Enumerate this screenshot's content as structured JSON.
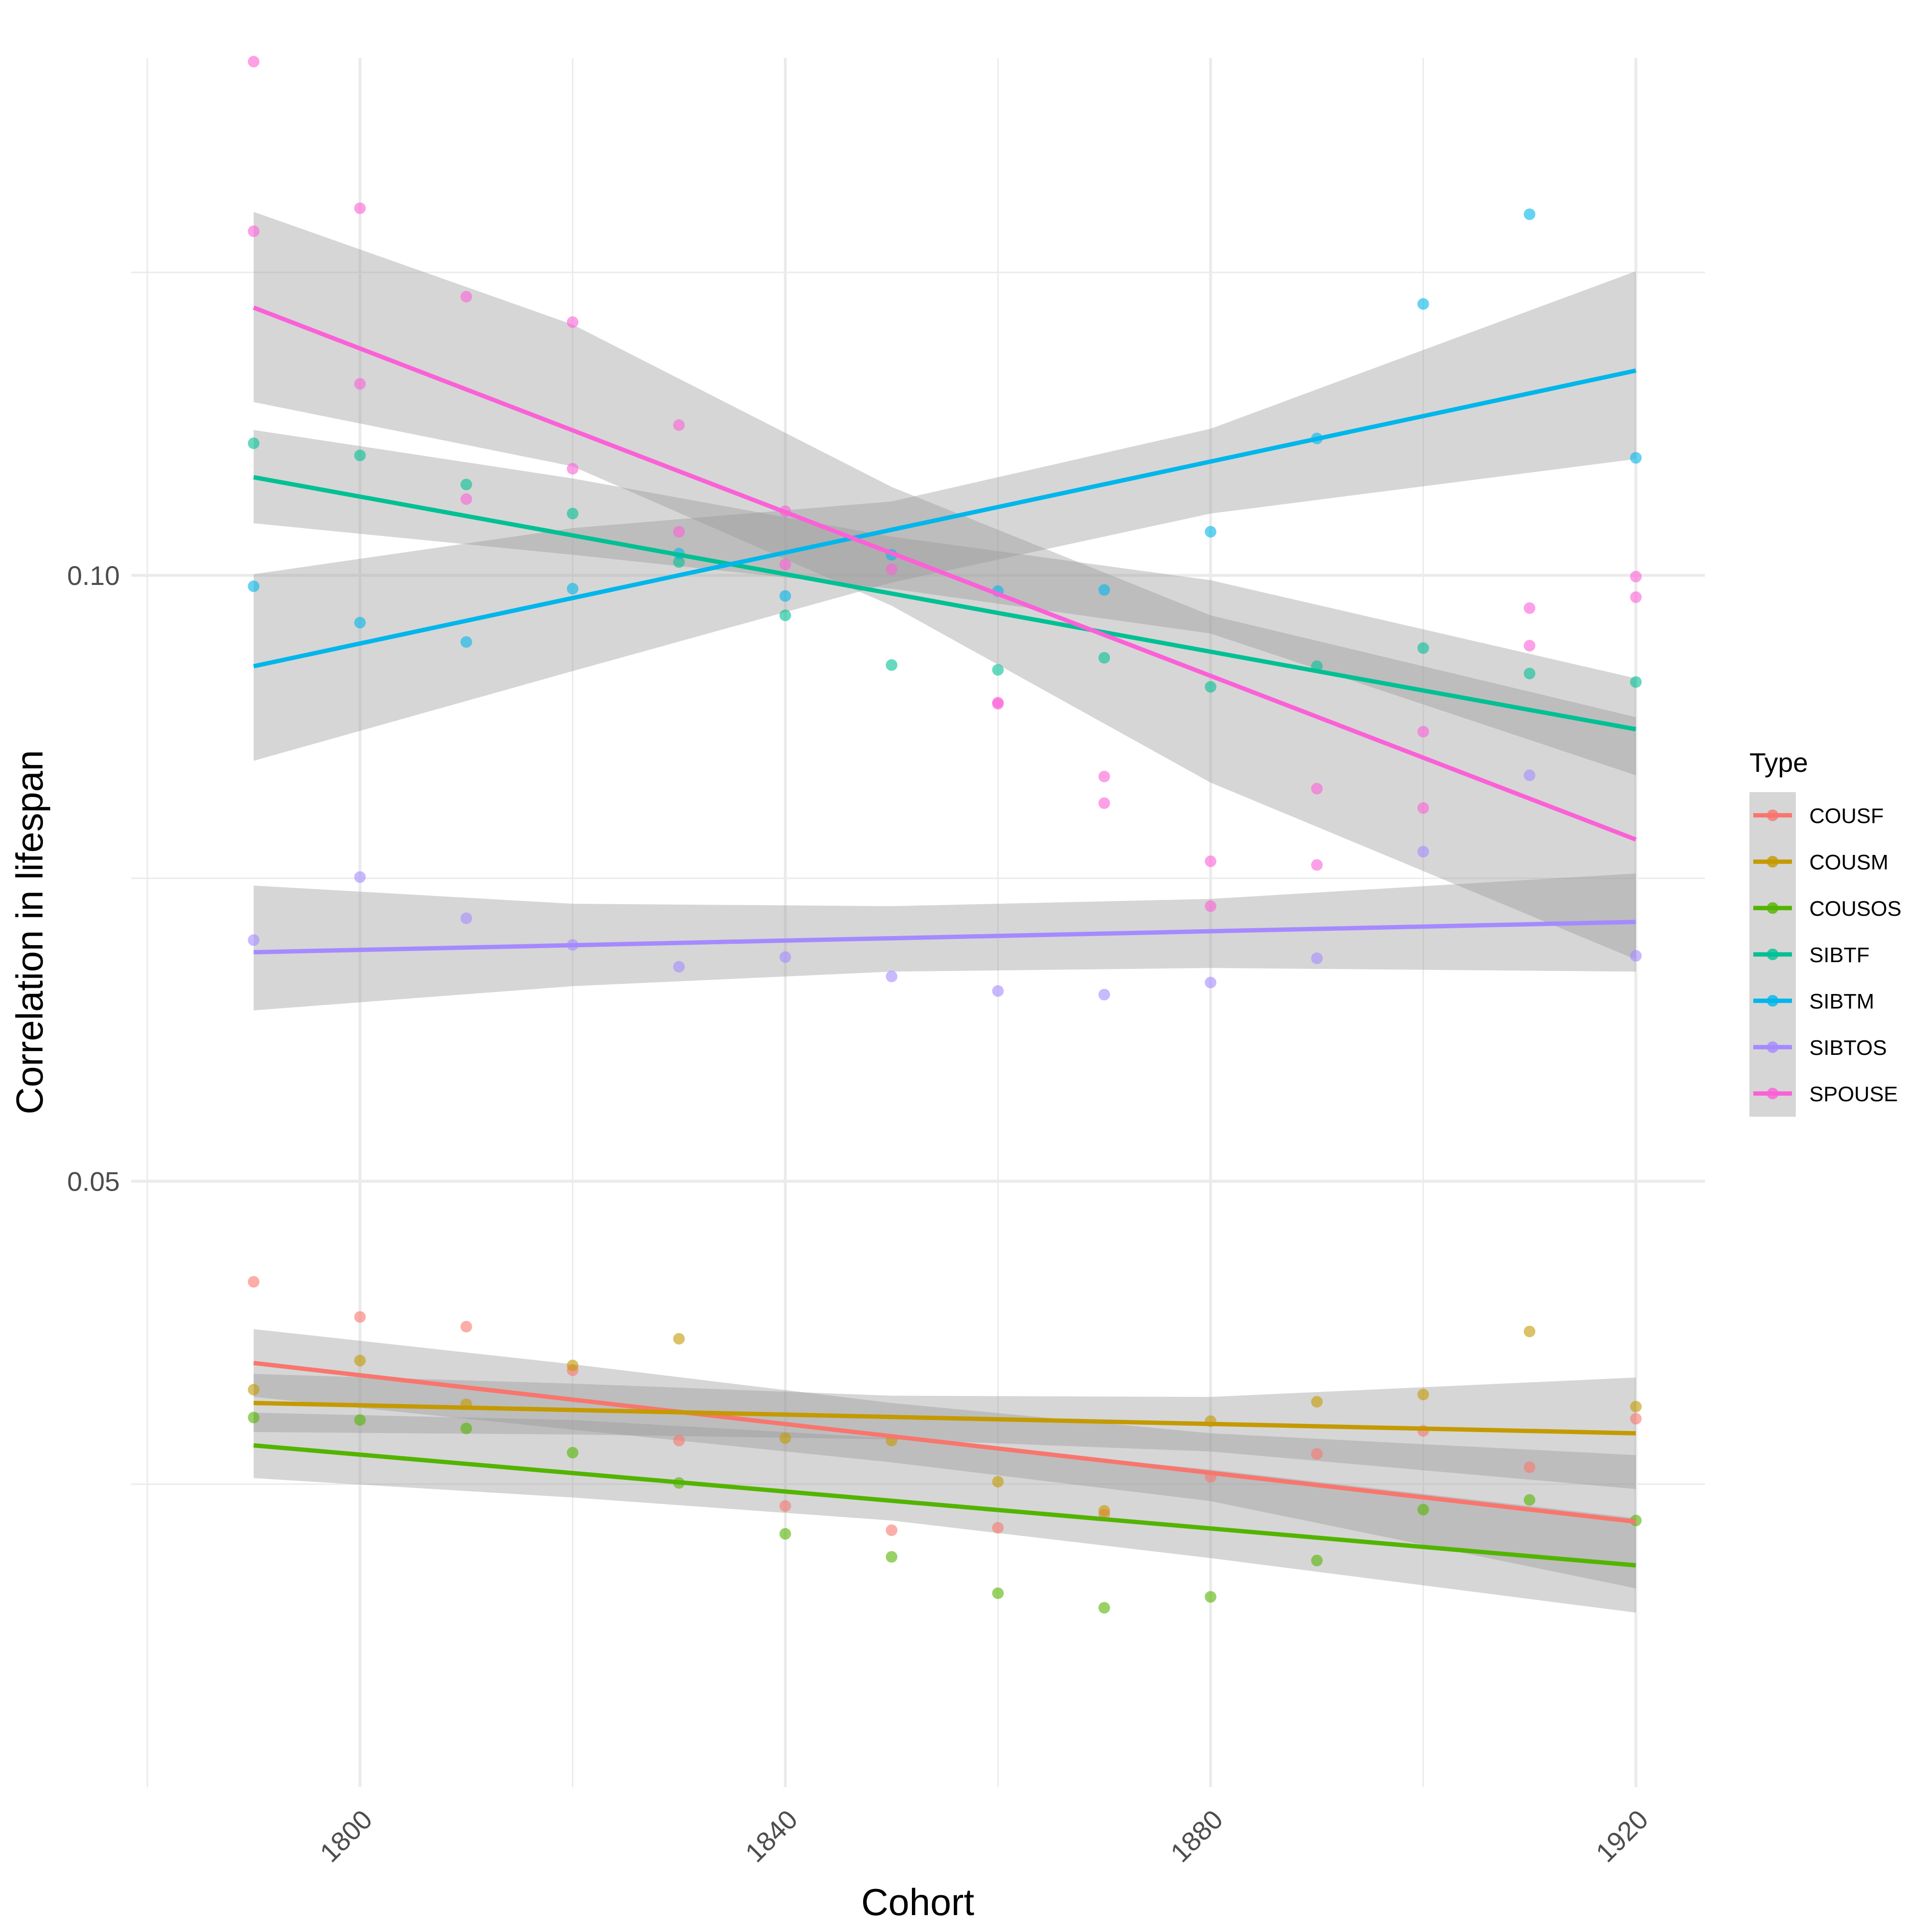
{
  "chart_data": {
    "type": "scatter",
    "title": "",
    "xlabel": "Cohort",
    "ylabel": "Correlation in lifespan",
    "xlim": [
      1778.5,
      1926.5
    ],
    "ylim": [
      0.0,
      0.1427
    ],
    "x_ticks": [
      1800,
      1840,
      1880,
      1920
    ],
    "x_tick_labels": [
      "1800",
      "1840",
      "1880",
      "1920"
    ],
    "y_ticks": [
      0.05,
      0.1
    ],
    "y_tick_labels": [
      "0.05",
      "0.10"
    ],
    "y_minor_ticks": [
      0.025,
      0.075,
      0.125
    ],
    "x_minor_ticks": [
      1780,
      1820,
      1860,
      1900
    ],
    "grid": true,
    "legend": {
      "title": "Type",
      "position": "right"
    },
    "colors": {
      "COUSF": "#F8766D",
      "COUSM": "#C49A00",
      "COUSOS": "#53B400",
      "SIBTF": "#00C094",
      "SIBTM": "#00B6EB",
      "SIBTOS": "#A58AFF",
      "SPOUSE": "#FB61D7",
      "ribbon": "#999999",
      "grid": "#EBEBEB"
    },
    "x": [
      1790,
      1800,
      1810,
      1820,
      1830,
      1840,
      1850,
      1860,
      1870,
      1880,
      1890,
      1900,
      1910,
      1920
    ],
    "series": [
      {
        "name": "COUSF",
        "points": [
          [
            1790,
            0.0417
          ],
          [
            1800,
            0.0388
          ],
          [
            1810,
            0.038
          ],
          [
            1820,
            0.0344
          ],
          [
            1830,
            0.0286
          ],
          [
            1840,
            0.0232
          ],
          [
            1850,
            0.0212
          ],
          [
            1860,
            0.0214
          ],
          [
            1870,
            0.0225
          ],
          [
            1880,
            0.0256
          ],
          [
            1890,
            0.0275
          ],
          [
            1900,
            0.0294
          ],
          [
            1910,
            0.0264
          ],
          [
            1920,
            0.0304
          ]
        ],
        "fit": {
          "x": [
            1790,
            1920
          ],
          "y": [
            0.035,
            0.0219
          ]
        },
        "band": {
          "x": [
            1790,
            1820,
            1850,
            1880,
            1920
          ],
          "lower": [
            0.0322,
            0.0295,
            0.0268,
            0.0236,
            0.0164
          ],
          "upper": [
            0.0378,
            0.0349,
            0.0317,
            0.0292,
            0.0274
          ]
        }
      },
      {
        "name": "COUSM",
        "points": [
          [
            1790,
            0.0328
          ],
          [
            1800,
            0.0352
          ],
          [
            1810,
            0.0316
          ],
          [
            1820,
            0.0348
          ],
          [
            1830,
            0.037
          ],
          [
            1840,
            0.0288
          ],
          [
            1850,
            0.0286
          ],
          [
            1860,
            0.0252
          ],
          [
            1870,
            0.0228
          ],
          [
            1880,
            0.0302
          ],
          [
            1890,
            0.0318
          ],
          [
            1900,
            0.0324
          ],
          [
            1910,
            0.0376
          ],
          [
            1920,
            0.0314
          ]
        ],
        "fit": {
          "x": [
            1790,
            1920
          ],
          "y": [
            0.0317,
            0.0292
          ]
        },
        "band": {
          "x": [
            1790,
            1820,
            1850,
            1880,
            1920
          ],
          "lower": [
            0.0293,
            0.0291,
            0.0287,
            0.0277,
            0.0246
          ],
          "upper": [
            0.0341,
            0.0333,
            0.0323,
            0.0322,
            0.0338
          ]
        }
      },
      {
        "name": "COUSOS",
        "points": [
          [
            1790,
            0.0305
          ],
          [
            1800,
            0.0303
          ],
          [
            1810,
            0.0296
          ],
          [
            1820,
            0.0276
          ],
          [
            1830,
            0.0251
          ],
          [
            1840,
            0.0209
          ],
          [
            1850,
            0.019
          ],
          [
            1860,
            0.016
          ],
          [
            1870,
            0.0148
          ],
          [
            1880,
            0.0157
          ],
          [
            1890,
            0.0187
          ],
          [
            1900,
            0.0229
          ],
          [
            1910,
            0.0237
          ],
          [
            1920,
            0.022
          ]
        ],
        "fit": {
          "x": [
            1790,
            1920
          ],
          "y": [
            0.0282,
            0.0183
          ]
        },
        "band": {
          "x": [
            1790,
            1820,
            1850,
            1880,
            1920
          ],
          "lower": [
            0.0255,
            0.0239,
            0.022,
            0.0189,
            0.0144
          ],
          "upper": [
            0.0309,
            0.0303,
            0.0288,
            0.0262,
            0.0222
          ]
        }
      },
      {
        "name": "SIBTF",
        "points": [
          [
            1790,
            0.1109
          ],
          [
            1800,
            0.1099
          ],
          [
            1810,
            0.1075
          ],
          [
            1820,
            0.1051
          ],
          [
            1830,
            0.1011
          ],
          [
            1840,
            0.0967
          ],
          [
            1850,
            0.0926
          ],
          [
            1860,
            0.0922
          ],
          [
            1870,
            0.0932
          ],
          [
            1880,
            0.0908
          ],
          [
            1890,
            0.0925
          ],
          [
            1900,
            0.094
          ],
          [
            1910,
            0.0919
          ],
          [
            1920,
            0.0912
          ]
        ],
        "fit": {
          "x": [
            1790,
            1920
          ],
          "y": [
            0.1081,
            0.0873
          ]
        },
        "band": {
          "x": [
            1790,
            1820,
            1850,
            1880,
            1920
          ],
          "lower": [
            0.1043,
            0.1017,
            0.0989,
            0.0952,
            0.0835
          ],
          "upper": [
            0.112,
            0.108,
            0.1032,
            0.0996,
            0.0915
          ]
        }
      },
      {
        "name": "SIBTM",
        "points": [
          [
            1790,
            0.0991
          ],
          [
            1800,
            0.0961
          ],
          [
            1810,
            0.0945
          ],
          [
            1820,
            0.0989
          ],
          [
            1830,
            0.1018
          ],
          [
            1840,
            0.0983
          ],
          [
            1850,
            0.1017
          ],
          [
            1860,
            0.0987
          ],
          [
            1870,
            0.0988
          ],
          [
            1880,
            0.1036
          ],
          [
            1890,
            0.1113
          ],
          [
            1900,
            0.1224
          ],
          [
            1910,
            0.1298
          ],
          [
            1920,
            0.1097
          ]
        ],
        "fit": {
          "x": [
            1790,
            1920
          ],
          "y": [
            0.0925,
            0.1169
          ]
        },
        "band": {
          "x": [
            1790,
            1820,
            1850,
            1880,
            1920
          ],
          "lower": [
            0.0847,
            0.0921,
            0.0994,
            0.1051,
            0.1096
          ],
          "upper": [
            0.1001,
            0.1039,
            0.1061,
            0.1121,
            0.1251
          ]
        }
      },
      {
        "name": "SIBTOS",
        "points": [
          [
            1790,
            0.0699
          ],
          [
            1800,
            0.0751
          ],
          [
            1810,
            0.0717
          ],
          [
            1820,
            0.0695
          ],
          [
            1830,
            0.0677
          ],
          [
            1840,
            0.0685
          ],
          [
            1850,
            0.0669
          ],
          [
            1860,
            0.0657
          ],
          [
            1870,
            0.0654
          ],
          [
            1880,
            0.0664
          ],
          [
            1890,
            0.0684
          ],
          [
            1900,
            0.0772
          ],
          [
            1910,
            0.0835
          ],
          [
            1920,
            0.0686
          ]
        ],
        "fit": {
          "x": [
            1790,
            1920
          ],
          "y": [
            0.0689,
            0.0714
          ]
        },
        "band": {
          "x": [
            1790,
            1820,
            1850,
            1880,
            1920
          ],
          "lower": [
            0.0641,
            0.0661,
            0.0673,
            0.0676,
            0.0673
          ],
          "upper": [
            0.0744,
            0.0729,
            0.0727,
            0.0733,
            0.0754
          ]
        }
      },
      {
        "name": "SPOUSE",
        "points": [
          [
            1790,
            0.1424
          ],
          [
            1790,
            0.1284
          ],
          [
            1800,
            0.1303
          ],
          [
            1800,
            0.1158
          ],
          [
            1810,
            0.123
          ],
          [
            1810,
            0.1063
          ],
          [
            1820,
            0.1209
          ],
          [
            1820,
            0.1088
          ],
          [
            1830,
            0.1124
          ],
          [
            1830,
            0.1036
          ],
          [
            1840,
            0.1053
          ],
          [
            1840,
            0.1009
          ],
          [
            1850,
            0.1005
          ],
          [
            1860,
            0.0894
          ],
          [
            1860,
            0.0895
          ],
          [
            1870,
            0.0834
          ],
          [
            1870,
            0.0812
          ],
          [
            1880,
            0.0764
          ],
          [
            1880,
            0.0727
          ],
          [
            1890,
            0.0824
          ],
          [
            1890,
            0.0761
          ],
          [
            1900,
            0.0871
          ],
          [
            1900,
            0.0808
          ],
          [
            1910,
            0.0973
          ],
          [
            1910,
            0.0942
          ],
          [
            1920,
            0.0999
          ],
          [
            1920,
            0.0982
          ]
        ],
        "fit": {
          "x": [
            1790,
            1920
          ],
          "y": [
            0.1221,
            0.0782
          ]
        },
        "band": {
          "x": [
            1790,
            1820,
            1850,
            1880,
            1920
          ],
          "lower": [
            0.1143,
            0.109,
            0.0975,
            0.0829,
            0.0683
          ],
          "upper": [
            0.13,
            0.1207,
            0.1073,
            0.0967,
            0.0883
          ]
        }
      }
    ]
  }
}
